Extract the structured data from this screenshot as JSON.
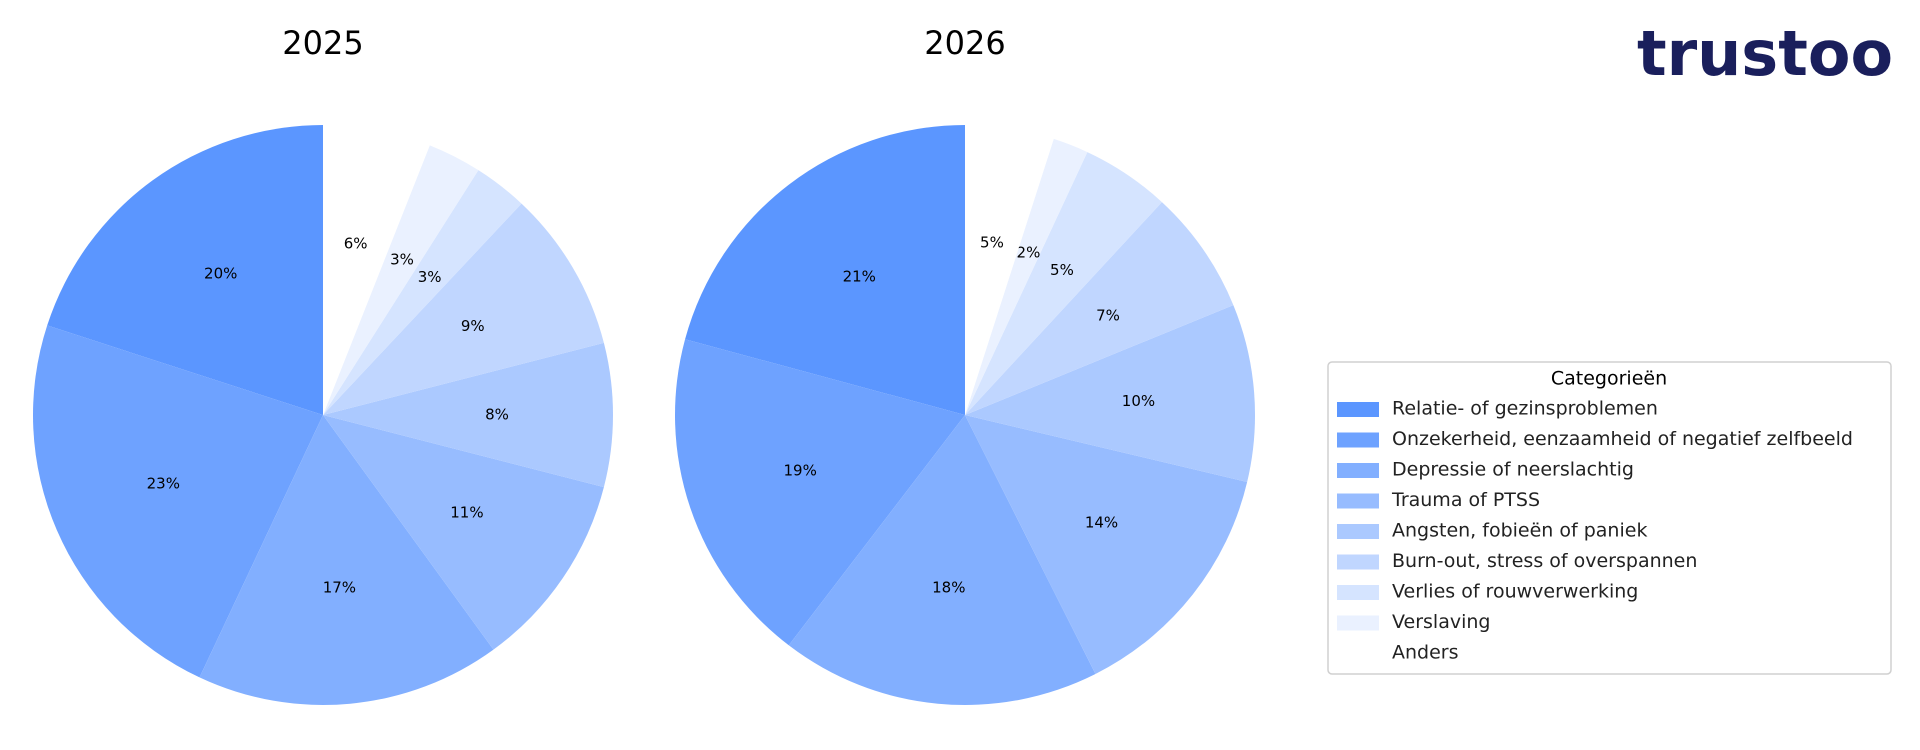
{
  "logo": "trustoo",
  "legend": {
    "title": "Categorieën"
  },
  "chart_data": [
    {
      "type": "pie",
      "title": "2025",
      "categories": [
        "Relatie- of gezinsproblemen",
        "Onzekerheid, eenzaamheid of negatief zelfbeeld",
        "Depressie of neerslachtig",
        "Trauma of PTSS",
        "Angsten, fobieën of paniek",
        "Burn-out, stress of overspannen",
        "Verlies of rouwverwerking",
        "Verslaving",
        "Anders"
      ],
      "values": [
        20,
        23,
        17,
        11,
        8,
        9,
        3,
        3,
        6
      ],
      "value_labels": [
        "20%",
        "23%",
        "17%",
        "11%",
        "8%",
        "9%",
        "3%",
        "3%",
        "6%"
      ],
      "colors": [
        "#5b96ff",
        "#6ea2ff",
        "#82afff",
        "#97bcff",
        "#abc9ff",
        "#c0d6ff",
        "#d5e4ff",
        "#eaf1ff",
        "#ffffff"
      ]
    },
    {
      "type": "pie",
      "title": "2026",
      "categories": [
        "Relatie- of gezinsproblemen",
        "Onzekerheid, eenzaamheid of negatief zelfbeeld",
        "Depressie of neerslachtig",
        "Trauma of PTSS",
        "Angsten, fobieën of paniek",
        "Burn-out, stress of overspannen",
        "Verlies of rouwverwerking",
        "Verslaving",
        "Anders"
      ],
      "values": [
        21,
        19,
        18,
        14,
        10,
        7,
        5,
        2,
        5
      ],
      "value_labels": [
        "21%",
        "19%",
        "18%",
        "14%",
        "10%",
        "7%",
        "5%",
        "2%",
        "5%"
      ],
      "colors": [
        "#5b96ff",
        "#6ea2ff",
        "#82afff",
        "#97bcff",
        "#abc9ff",
        "#c0d6ff",
        "#d5e4ff",
        "#eaf1ff",
        "#ffffff"
      ]
    }
  ]
}
